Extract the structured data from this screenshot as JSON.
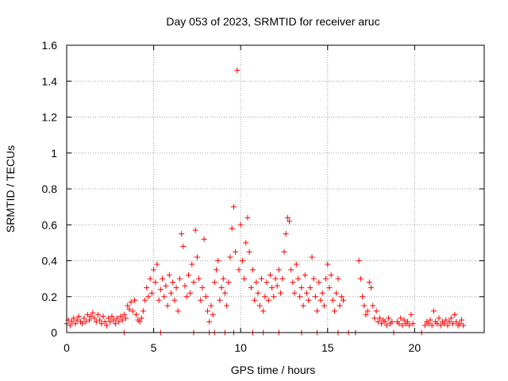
{
  "chart_data": {
    "type": "scatter",
    "title": "Day 053 of 2023, SRMTID for receiver aruc",
    "xlabel": "GPS time / hours",
    "ylabel": "SRMTID / TECUs",
    "xlim": [
      0,
      24
    ],
    "ylim": [
      0,
      1.6
    ],
    "x_ticks": [
      0,
      5,
      10,
      15,
      20
    ],
    "x_tick_labels": [
      "0",
      "5",
      "10",
      "15",
      "20"
    ],
    "y_ticks": [
      0,
      0.2,
      0.4,
      0.6,
      0.8,
      1.0,
      1.2,
      1.4,
      1.6
    ],
    "y_tick_labels": [
      "0",
      "0.2",
      "0.4",
      "0.6",
      "0.8",
      "1",
      "1.2",
      "1.4",
      "1.6"
    ],
    "grid": true,
    "marker": "+",
    "marker_color": "#ff0000",
    "series": [
      {
        "name": "SRMTID",
        "points": [
          [
            0.0,
            0.05
          ],
          [
            0.1,
            0.07
          ],
          [
            0.2,
            0.04
          ],
          [
            0.3,
            0.06
          ],
          [
            0.4,
            0.08
          ],
          [
            0.5,
            0.05
          ],
          [
            0.6,
            0.07
          ],
          [
            0.7,
            0.09
          ],
          [
            0.8,
            0.06
          ],
          [
            0.9,
            0.05
          ],
          [
            1.0,
            0.08
          ],
          [
            1.1,
            0.06
          ],
          [
            1.2,
            0.1
          ],
          [
            1.3,
            0.07
          ],
          [
            1.4,
            0.09
          ],
          [
            1.5,
            0.11
          ],
          [
            1.6,
            0.08
          ],
          [
            1.7,
            0.06
          ],
          [
            1.8,
            0.1
          ],
          [
            1.9,
            0.07
          ],
          [
            2.0,
            0.05
          ],
          [
            2.1,
            0.09
          ],
          [
            2.2,
            0.06
          ],
          [
            2.3,
            0.04
          ],
          [
            2.4,
            0.08
          ],
          [
            2.5,
            0.06
          ],
          [
            2.6,
            0.09
          ],
          [
            2.7,
            0.07
          ],
          [
            2.8,
            0.05
          ],
          [
            2.9,
            0.08
          ],
          [
            3.0,
            0.06
          ],
          [
            3.1,
            0.09
          ],
          [
            3.2,
            0.07
          ],
          [
            3.3,
            0.1
          ],
          [
            3.4,
            0.08
          ],
          [
            3.5,
            0.15
          ],
          [
            3.6,
            0.13
          ],
          [
            3.7,
            0.17
          ],
          [
            3.8,
            0.12
          ],
          [
            3.9,
            0.18
          ],
          [
            4.0,
            0.1
          ],
          [
            4.1,
            0.07
          ],
          [
            4.2,
            0.06
          ],
          [
            4.3,
            0.08
          ],
          [
            4.4,
            0.12
          ],
          [
            4.5,
            0.18
          ],
          [
            4.6,
            0.25
          ],
          [
            4.7,
            0.2
          ],
          [
            4.8,
            0.3
          ],
          [
            4.9,
            0.22
          ],
          [
            5.0,
            0.35
          ],
          [
            5.1,
            0.28
          ],
          [
            5.2,
            0.38
          ],
          [
            5.3,
            0.18
          ],
          [
            5.4,
            0.24
          ],
          [
            5.5,
            0.3
          ],
          [
            5.6,
            0.2
          ],
          [
            5.7,
            0.26
          ],
          [
            5.8,
            0.15
          ],
          [
            5.9,
            0.32
          ],
          [
            6.0,
            0.22
          ],
          [
            6.1,
            0.28
          ],
          [
            6.2,
            0.18
          ],
          [
            6.3,
            0.25
          ],
          [
            6.4,
            0.12
          ],
          [
            6.5,
            0.3
          ],
          [
            6.6,
            0.55
          ],
          [
            6.7,
            0.48
          ],
          [
            6.8,
            0.26
          ],
          [
            6.9,
            0.2
          ],
          [
            7.0,
            0.32
          ],
          [
            7.1,
            0.22
          ],
          [
            7.2,
            0.38
          ],
          [
            7.3,
            0.28
          ],
          [
            7.4,
            0.57
          ],
          [
            7.5,
            0.42
          ],
          [
            7.6,
            0.3
          ],
          [
            7.7,
            0.18
          ],
          [
            7.8,
            0.25
          ],
          [
            7.9,
            0.52
          ],
          [
            8.0,
            0.2
          ],
          [
            8.1,
            0.12
          ],
          [
            8.2,
            0.06
          ],
          [
            8.3,
            0.15
          ],
          [
            8.4,
            0.1
          ],
          [
            8.5,
            0.28
          ],
          [
            8.6,
            0.35
          ],
          [
            8.7,
            0.4
          ],
          [
            8.8,
            0.18
          ],
          [
            8.9,
            0.25
          ],
          [
            9.0,
            0.3
          ],
          [
            9.1,
            0.22
          ],
          [
            9.2,
            0.15
          ],
          [
            9.3,
            0.28
          ],
          [
            9.4,
            0.42
          ],
          [
            9.5,
            0.58
          ],
          [
            9.6,
            0.7
          ],
          [
            9.7,
            0.45
          ],
          [
            9.8,
            1.46
          ],
          [
            9.9,
            0.35
          ],
          [
            10.0,
            0.6
          ],
          [
            10.1,
            0.4
          ],
          [
            10.2,
            0.3
          ],
          [
            10.3,
            0.5
          ],
          [
            10.4,
            0.64
          ],
          [
            10.5,
            0.45
          ],
          [
            10.6,
            0.25
          ],
          [
            10.7,
            0.35
          ],
          [
            10.8,
            0.18
          ],
          [
            10.9,
            0.28
          ],
          [
            11.0,
            0.22
          ],
          [
            11.1,
            0.15
          ],
          [
            11.2,
            0.3
          ],
          [
            11.3,
            0.12
          ],
          [
            11.4,
            0.2
          ],
          [
            11.5,
            0.28
          ],
          [
            11.6,
            0.18
          ],
          [
            11.7,
            0.32
          ],
          [
            11.8,
            0.25
          ],
          [
            11.9,
            0.2
          ],
          [
            12.0,
            0.3
          ],
          [
            12.1,
            0.26
          ],
          [
            12.2,
            0.35
          ],
          [
            12.3,
            0.22
          ],
          [
            12.4,
            0.3
          ],
          [
            12.5,
            0.45
          ],
          [
            12.6,
            0.55
          ],
          [
            12.7,
            0.64
          ],
          [
            12.8,
            0.62
          ],
          [
            12.9,
            0.35
          ],
          [
            13.0,
            0.28
          ],
          [
            13.1,
            0.22
          ],
          [
            13.2,
            0.38
          ],
          [
            13.3,
            0.3
          ],
          [
            13.4,
            0.2
          ],
          [
            13.5,
            0.25
          ],
          [
            13.6,
            0.15
          ],
          [
            13.7,
            0.32
          ],
          [
            13.8,
            0.22
          ],
          [
            13.9,
            0.18
          ],
          [
            14.0,
            0.25
          ],
          [
            14.1,
            0.42
          ],
          [
            14.2,
            0.3
          ],
          [
            14.3,
            0.2
          ],
          [
            14.4,
            0.12
          ],
          [
            14.5,
            0.28
          ],
          [
            14.6,
            0.18
          ],
          [
            14.7,
            0.22
          ],
          [
            14.8,
            0.15
          ],
          [
            14.9,
            0.3
          ],
          [
            15.0,
            0.38
          ],
          [
            15.1,
            0.25
          ],
          [
            15.2,
            0.32
          ],
          [
            15.3,
            0.18
          ],
          [
            15.4,
            0.12
          ],
          [
            15.5,
            0.22
          ],
          [
            15.6,
            0.3
          ],
          [
            15.7,
            0.15
          ],
          [
            15.8,
            0.2
          ],
          [
            15.9,
            0.18
          ],
          [
            16.8,
            0.4
          ],
          [
            16.9,
            0.3
          ],
          [
            17.0,
            0.2
          ],
          [
            17.1,
            0.15
          ],
          [
            17.2,
            0.1
          ],
          [
            17.3,
            0.12
          ],
          [
            17.4,
            0.28
          ],
          [
            17.5,
            0.25
          ],
          [
            17.6,
            0.15
          ],
          [
            17.7,
            0.08
          ],
          [
            17.8,
            0.12
          ],
          [
            17.9,
            0.06
          ],
          [
            18.0,
            0.08
          ],
          [
            18.1,
            0.05
          ],
          [
            18.2,
            0.07
          ],
          [
            18.3,
            0.06
          ],
          [
            18.4,
            0.04
          ],
          [
            18.5,
            0.08
          ],
          [
            18.6,
            0.05
          ],
          [
            18.7,
            0.06
          ],
          [
            19.0,
            0.06
          ],
          [
            19.1,
            0.05
          ],
          [
            19.2,
            0.08
          ],
          [
            19.3,
            0.04
          ],
          [
            19.4,
            0.07
          ],
          [
            19.5,
            0.05
          ],
          [
            19.6,
            0.06
          ],
          [
            19.7,
            0.04
          ],
          [
            19.8,
            0.1
          ],
          [
            19.9,
            0.05
          ],
          [
            20.6,
            0.04
          ],
          [
            20.7,
            0.06
          ],
          [
            20.8,
            0.05
          ],
          [
            20.9,
            0.07
          ],
          [
            21.0,
            0.04
          ],
          [
            21.1,
            0.12
          ],
          [
            21.2,
            0.06
          ],
          [
            21.3,
            0.05
          ],
          [
            21.4,
            0.08
          ],
          [
            21.5,
            0.04
          ],
          [
            21.6,
            0.06
          ],
          [
            21.7,
            0.05
          ],
          [
            21.8,
            0.07
          ],
          [
            21.9,
            0.04
          ],
          [
            22.0,
            0.06
          ],
          [
            22.1,
            0.08
          ],
          [
            22.2,
            0.05
          ],
          [
            22.3,
            0.1
          ],
          [
            22.4,
            0.06
          ],
          [
            22.5,
            0.04
          ],
          [
            22.6,
            0.05
          ],
          [
            22.7,
            0.07
          ],
          [
            22.8,
            0.04
          ],
          [
            5.4,
            0.0
          ],
          [
            7.3,
            0.0
          ],
          [
            8.2,
            0.0
          ],
          [
            8.5,
            0.0
          ],
          [
            9.1,
            0.0
          ],
          [
            9.6,
            0.0
          ],
          [
            10.7,
            0.0
          ],
          [
            11.3,
            0.0
          ],
          [
            12.2,
            0.0
          ],
          [
            13.5,
            0.0
          ],
          [
            14.4,
            0.0
          ],
          [
            15.6,
            0.0
          ],
          [
            16.2,
            0.0
          ],
          [
            16.6,
            0.0
          ],
          [
            18.8,
            0.0
          ],
          [
            20.4,
            0.0
          ],
          [
            3.3,
            0.0
          ]
        ]
      }
    ]
  }
}
